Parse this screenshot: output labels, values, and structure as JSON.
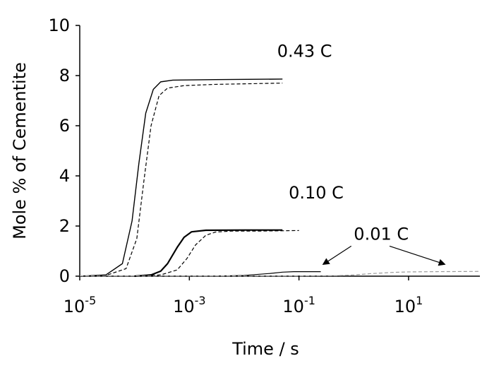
{
  "chart_data": {
    "type": "line",
    "title": "",
    "xlabel": "Time / s",
    "ylabel": "Mole % of Cementite",
    "x_scale": "log",
    "xlim": [
      1e-05,
      200
    ],
    "ylim": [
      0,
      10
    ],
    "y_ticks": [
      {
        "value": 0,
        "label": "0"
      },
      {
        "value": 2,
        "label": "2"
      },
      {
        "value": 4,
        "label": "4"
      },
      {
        "value": 6,
        "label": "6"
      },
      {
        "value": 8,
        "label": "8"
      },
      {
        "value": 10,
        "label": "10"
      }
    ],
    "x_ticks": [
      {
        "value": 1e-05,
        "base": "10",
        "exp": "-5"
      },
      {
        "value": 0.001,
        "base": "10",
        "exp": "-3"
      },
      {
        "value": 0.1,
        "base": "10",
        "exp": "-1"
      },
      {
        "value": 10,
        "base": "10",
        "exp": "1"
      }
    ],
    "grid": false,
    "legend": "none",
    "annotations": [
      {
        "text": "0.43 C",
        "x": 0.04,
        "y": 8.75
      },
      {
        "text": "0.10 C",
        "x": 0.065,
        "y": 3.1
      },
      {
        "text": "0.01 C",
        "x": 1.0,
        "y": 1.45
      }
    ],
    "arrows": [
      {
        "from": [
          0.9,
          1.2
        ],
        "to": [
          0.28,
          0.48
        ]
      },
      {
        "from": [
          4.5,
          1.2
        ],
        "to": [
          45,
          0.48
        ]
      }
    ],
    "series": [
      {
        "style": "solid",
        "color": "#000000",
        "width": 1.4,
        "points": [
          [
            1e-05,
            0
          ],
          [
            3e-05,
            0.05
          ],
          [
            6e-05,
            0.5
          ],
          [
            9e-05,
            2.2
          ],
          [
            0.00012,
            4.5
          ],
          [
            0.00016,
            6.5
          ],
          [
            0.00022,
            7.45
          ],
          [
            0.0003,
            7.75
          ],
          [
            0.0005,
            7.82
          ],
          [
            0.003,
            7.84
          ],
          [
            0.05,
            7.86
          ]
        ]
      },
      {
        "style": "dashed",
        "color": "#000000",
        "width": 1.2,
        "points": [
          [
            1e-05,
            0
          ],
          [
            3e-05,
            0.03
          ],
          [
            7e-05,
            0.3
          ],
          [
            0.00011,
            1.5
          ],
          [
            0.00015,
            3.9
          ],
          [
            0.0002,
            6.0
          ],
          [
            0.00028,
            7.2
          ],
          [
            0.0004,
            7.5
          ],
          [
            0.0008,
            7.6
          ],
          [
            0.003,
            7.65
          ],
          [
            0.05,
            7.7
          ]
        ]
      },
      {
        "style": "solid",
        "color": "#000000",
        "width": 2.2,
        "points": [
          [
            0.0001,
            0
          ],
          [
            0.0002,
            0.05
          ],
          [
            0.0003,
            0.2
          ],
          [
            0.0004,
            0.5
          ],
          [
            0.0006,
            1.15
          ],
          [
            0.0008,
            1.55
          ],
          [
            0.0011,
            1.77
          ],
          [
            0.002,
            1.83
          ],
          [
            0.01,
            1.84
          ],
          [
            0.05,
            1.84
          ]
        ]
      },
      {
        "style": "dashed",
        "color": "#000000",
        "width": 1.2,
        "points": [
          [
            0.0001,
            0
          ],
          [
            0.0003,
            0.05
          ],
          [
            0.0006,
            0.25
          ],
          [
            0.0009,
            0.7
          ],
          [
            0.0013,
            1.25
          ],
          [
            0.002,
            1.63
          ],
          [
            0.003,
            1.76
          ],
          [
            0.006,
            1.8
          ],
          [
            0.02,
            1.8
          ],
          [
            0.1,
            1.82
          ]
        ]
      },
      {
        "style": "solid",
        "color": "#000000",
        "width": 1.2,
        "points": [
          [
            0.003,
            0
          ],
          [
            0.01,
            0.03
          ],
          [
            0.03,
            0.11
          ],
          [
            0.05,
            0.16
          ],
          [
            0.08,
            0.18
          ],
          [
            0.25,
            0.18
          ]
        ]
      },
      {
        "style": "dashed",
        "color": "#999999",
        "width": 1.2,
        "points": [
          [
            1e-05,
            0.01
          ],
          [
            0.1,
            0.01
          ],
          [
            0.5,
            0.02
          ],
          [
            1,
            0.05
          ],
          [
            2,
            0.1
          ],
          [
            5,
            0.15
          ],
          [
            10,
            0.17
          ],
          [
            30,
            0.18
          ],
          [
            200,
            0.19
          ]
        ]
      }
    ]
  }
}
